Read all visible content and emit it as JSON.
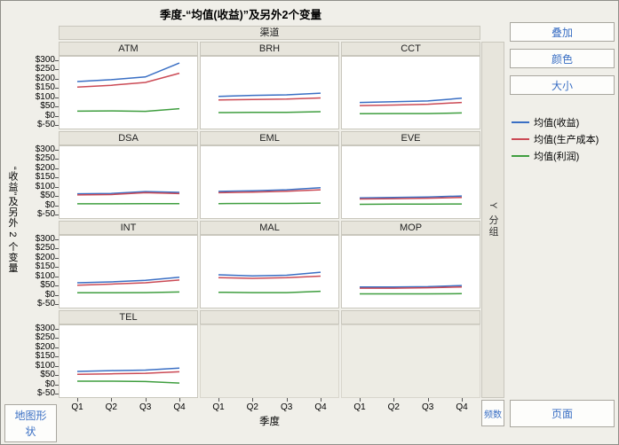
{
  "ui_colors": {
    "button_text": "#3a6fc4",
    "panel_fill": "#e7e5dc",
    "panel_border": "#c9c7bd",
    "background": "#f0efe9"
  },
  "controls": {
    "overlay": "叠加",
    "color": "颜色",
    "size": "大小",
    "y_group": "Y 分组",
    "freq": "频数",
    "page": "页面",
    "map_shape": "地图形状"
  },
  "chart_data": {
    "type": "line",
    "title": "季度-“均值(收益)”及另外2个变量",
    "column_band": "渠道",
    "x_label": "季度",
    "y_label": "“收益”及另外 2 个变量",
    "x_ticks": [
      "Q1",
      "Q2",
      "Q3",
      "Q4"
    ],
    "y_tick_labels": [
      "$300",
      "$250",
      "$200",
      "$150",
      "$100",
      "$50",
      "$0",
      "$-50"
    ],
    "y_tick_values": [
      300,
      250,
      200,
      150,
      100,
      50,
      0,
      -50
    ],
    "ylim": [
      -50,
      300
    ],
    "grid": false,
    "legend_position": "right",
    "series": [
      {
        "name": "均值(收益)",
        "color": "#3a6fc4"
      },
      {
        "name": "均值(生产成本)",
        "color": "#cb4a55"
      },
      {
        "name": "均值(利润)",
        "color": "#3f9e3f"
      }
    ],
    "panels": [
      {
        "name": "ATM",
        "values": [
          [
            185,
            195,
            210,
            285
          ],
          [
            155,
            165,
            180,
            230
          ],
          [
            25,
            26,
            24,
            38
          ]
        ]
      },
      {
        "name": "BRH",
        "values": [
          [
            105,
            110,
            113,
            122
          ],
          [
            85,
            88,
            90,
            96
          ],
          [
            17,
            18,
            18,
            22
          ]
        ]
      },
      {
        "name": "CCT",
        "values": [
          [
            72,
            76,
            80,
            95
          ],
          [
            55,
            58,
            62,
            72
          ],
          [
            11,
            12,
            12,
            15
          ]
        ]
      },
      {
        "name": "DSA",
        "values": [
          [
            62,
            64,
            74,
            70
          ],
          [
            56,
            58,
            68,
            63
          ],
          [
            8,
            8,
            9,
            9
          ]
        ]
      },
      {
        "name": "EML",
        "values": [
          [
            75,
            78,
            84,
            95
          ],
          [
            68,
            71,
            76,
            84
          ],
          [
            9,
            10,
            10,
            12
          ]
        ]
      },
      {
        "name": "EVE",
        "values": [
          [
            40,
            42,
            45,
            50
          ],
          [
            34,
            36,
            38,
            42
          ],
          [
            5,
            6,
            6,
            7
          ]
        ]
      },
      {
        "name": "INT",
        "values": [
          [
            65,
            70,
            78,
            95
          ],
          [
            52,
            58,
            65,
            80
          ],
          [
            11,
            11,
            12,
            15
          ]
        ]
      },
      {
        "name": "MAL",
        "values": [
          [
            108,
            102,
            106,
            122
          ],
          [
            93,
            89,
            93,
            101
          ],
          [
            14,
            12,
            12,
            19
          ]
        ]
      },
      {
        "name": "MOP",
        "values": [
          [
            42,
            42,
            44,
            50
          ],
          [
            36,
            36,
            38,
            42
          ],
          [
            5,
            5,
            5,
            6
          ]
        ]
      },
      {
        "name": "TEL",
        "values": [
          [
            70,
            74,
            77,
            88
          ],
          [
            54,
            57,
            60,
            68
          ],
          [
            17,
            17,
            15,
            7
          ]
        ]
      }
    ]
  }
}
